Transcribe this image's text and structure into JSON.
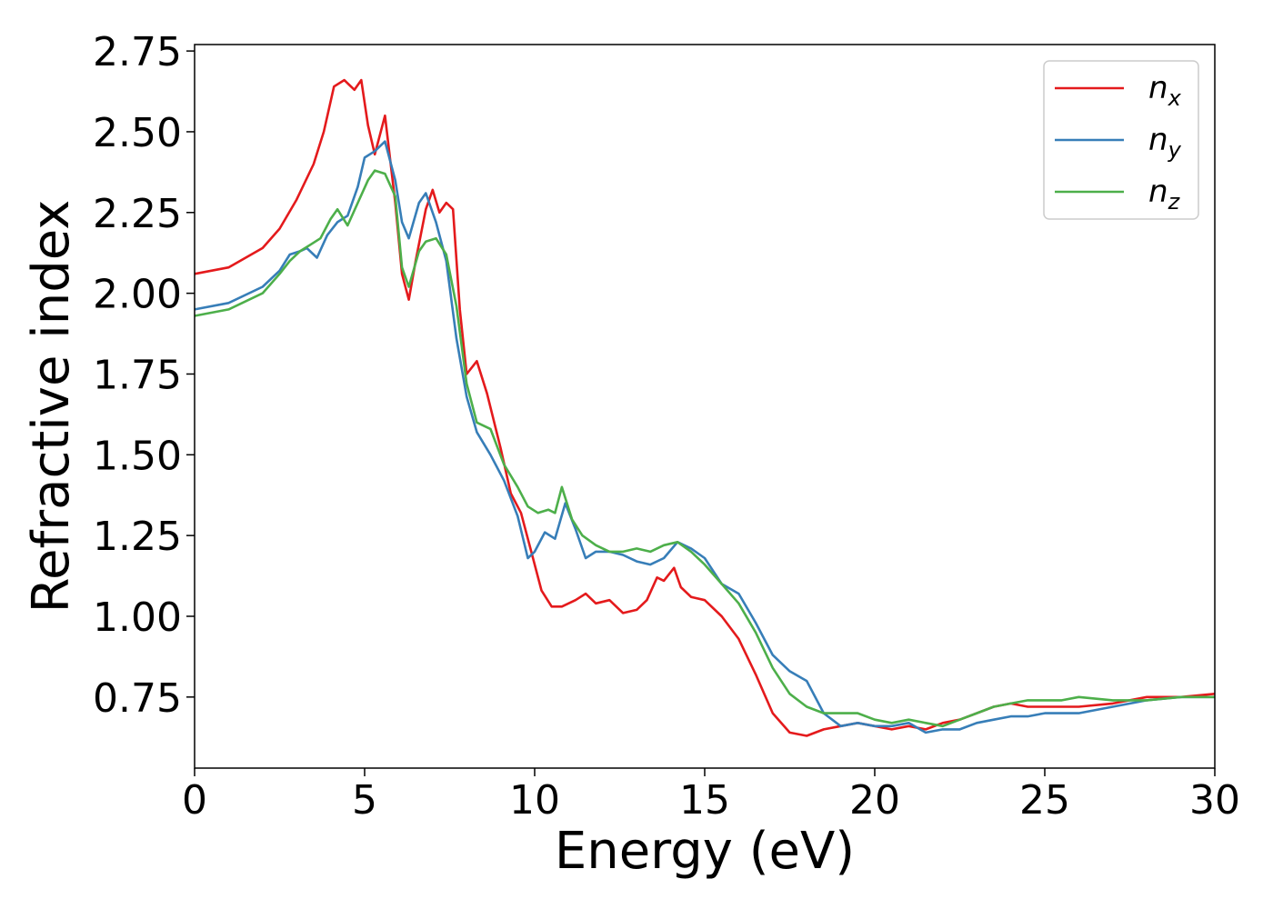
{
  "chart_data": {
    "type": "line",
    "title": "",
    "xlabel": "Energy (eV)",
    "ylabel": "Refractive index",
    "xlim": [
      0,
      30
    ],
    "ylim": [
      0.53,
      2.77
    ],
    "xticks": [
      0,
      5,
      10,
      15,
      20,
      25,
      30
    ],
    "yticks": [
      0.75,
      1.0,
      1.25,
      1.5,
      1.75,
      2.0,
      2.25,
      2.5,
      2.75
    ],
    "xtick_labels": [
      "0",
      "5",
      "10",
      "15",
      "20",
      "25",
      "30"
    ],
    "ytick_labels": [
      "0.75",
      "1.00",
      "1.25",
      "1.50",
      "1.75",
      "2.00",
      "2.25",
      "2.50",
      "2.75"
    ],
    "legend_position": "top-right",
    "grid": false,
    "series": [
      {
        "name": "n_x",
        "label_base": "n",
        "label_sub": "x",
        "color": "#e41a1c",
        "x": [
          0,
          1,
          2,
          2.5,
          3,
          3.5,
          3.8,
          4.1,
          4.4,
          4.7,
          4.9,
          5.1,
          5.3,
          5.6,
          5.9,
          6.1,
          6.3,
          6.5,
          6.8,
          7.0,
          7.2,
          7.4,
          7.6,
          7.8,
          8.0,
          8.3,
          8.6,
          9.0,
          9.3,
          9.6,
          9.9,
          10.2,
          10.5,
          10.8,
          11.2,
          11.5,
          11.8,
          12.2,
          12.6,
          13.0,
          13.3,
          13.6,
          13.8,
          14.1,
          14.3,
          14.6,
          15.0,
          15.5,
          16.0,
          16.5,
          17.0,
          17.5,
          18.0,
          18.5,
          19.0,
          19.5,
          20.0,
          20.5,
          21.0,
          21.5,
          22.0,
          22.5,
          23.0,
          23.5,
          24.0,
          24.5,
          25.0,
          26.0,
          27.0,
          28.0,
          29.0,
          30.0
        ],
        "y": [
          2.06,
          2.08,
          2.14,
          2.2,
          2.29,
          2.4,
          2.5,
          2.64,
          2.66,
          2.63,
          2.66,
          2.52,
          2.43,
          2.55,
          2.28,
          2.06,
          1.98,
          2.1,
          2.26,
          2.32,
          2.25,
          2.28,
          2.26,
          1.95,
          1.75,
          1.79,
          1.69,
          1.52,
          1.38,
          1.32,
          1.2,
          1.08,
          1.03,
          1.03,
          1.05,
          1.07,
          1.04,
          1.05,
          1.01,
          1.02,
          1.05,
          1.12,
          1.11,
          1.15,
          1.09,
          1.06,
          1.05,
          1.0,
          0.93,
          0.82,
          0.7,
          0.64,
          0.63,
          0.65,
          0.66,
          0.67,
          0.66,
          0.65,
          0.66,
          0.65,
          0.67,
          0.68,
          0.7,
          0.72,
          0.73,
          0.72,
          0.72,
          0.72,
          0.73,
          0.75,
          0.75,
          0.76
        ]
      },
      {
        "name": "n_y",
        "label_base": "n",
        "label_sub": "y",
        "color": "#377eb8",
        "x": [
          0,
          1,
          2,
          2.5,
          2.8,
          3.1,
          3.3,
          3.6,
          3.9,
          4.2,
          4.5,
          4.8,
          5.0,
          5.3,
          5.6,
          5.9,
          6.1,
          6.3,
          6.6,
          6.8,
          7.1,
          7.4,
          7.7,
          8.0,
          8.3,
          8.7,
          9.1,
          9.5,
          9.8,
          10.0,
          10.3,
          10.6,
          10.9,
          11.2,
          11.5,
          11.8,
          12.2,
          12.6,
          13.0,
          13.4,
          13.8,
          14.2,
          14.6,
          15.0,
          15.5,
          16.0,
          16.5,
          17.0,
          17.5,
          18.0,
          18.5,
          19.0,
          19.5,
          20.0,
          20.5,
          21.0,
          21.5,
          22.0,
          22.5,
          23.0,
          23.5,
          24.0,
          24.5,
          25.0,
          26.0,
          27.0,
          28.0,
          29.0,
          30.0
        ],
        "y": [
          1.95,
          1.97,
          2.02,
          2.07,
          2.12,
          2.13,
          2.14,
          2.11,
          2.18,
          2.22,
          2.24,
          2.33,
          2.42,
          2.44,
          2.47,
          2.35,
          2.22,
          2.17,
          2.28,
          2.31,
          2.22,
          2.1,
          1.86,
          1.68,
          1.57,
          1.5,
          1.42,
          1.31,
          1.18,
          1.2,
          1.26,
          1.24,
          1.35,
          1.27,
          1.18,
          1.2,
          1.2,
          1.19,
          1.17,
          1.16,
          1.18,
          1.23,
          1.21,
          1.18,
          1.1,
          1.07,
          0.98,
          0.88,
          0.83,
          0.8,
          0.7,
          0.66,
          0.67,
          0.66,
          0.66,
          0.67,
          0.64,
          0.65,
          0.65,
          0.67,
          0.68,
          0.69,
          0.69,
          0.7,
          0.7,
          0.72,
          0.74,
          0.75,
          0.75
        ]
      },
      {
        "name": "n_z",
        "label_base": "n",
        "label_sub": "z",
        "color": "#4daf4a",
        "x": [
          0,
          1,
          2,
          2.5,
          2.8,
          3.1,
          3.4,
          3.7,
          4.0,
          4.2,
          4.5,
          4.8,
          5.1,
          5.3,
          5.6,
          5.9,
          6.1,
          6.3,
          6.6,
          6.8,
          7.1,
          7.4,
          7.7,
          8.0,
          8.3,
          8.7,
          9.1,
          9.5,
          9.8,
          10.1,
          10.4,
          10.6,
          10.8,
          11.1,
          11.4,
          11.8,
          12.2,
          12.6,
          13.0,
          13.4,
          13.8,
          14.2,
          14.6,
          15.0,
          15.5,
          16.0,
          16.5,
          17.0,
          17.5,
          18.0,
          18.5,
          19.0,
          19.5,
          20.0,
          20.5,
          21.0,
          21.5,
          22.0,
          22.5,
          23.0,
          23.5,
          24.0,
          24.5,
          25.0,
          25.5,
          26.0,
          27.0,
          28.0,
          29.0,
          30.0
        ],
        "y": [
          1.93,
          1.95,
          2.0,
          2.06,
          2.1,
          2.13,
          2.15,
          2.17,
          2.23,
          2.26,
          2.21,
          2.28,
          2.35,
          2.38,
          2.37,
          2.3,
          2.08,
          2.02,
          2.13,
          2.16,
          2.17,
          2.12,
          1.96,
          1.72,
          1.6,
          1.58,
          1.47,
          1.4,
          1.34,
          1.32,
          1.33,
          1.32,
          1.4,
          1.3,
          1.25,
          1.22,
          1.2,
          1.2,
          1.21,
          1.2,
          1.22,
          1.23,
          1.2,
          1.16,
          1.1,
          1.04,
          0.95,
          0.84,
          0.76,
          0.72,
          0.7,
          0.7,
          0.7,
          0.68,
          0.67,
          0.68,
          0.67,
          0.66,
          0.68,
          0.7,
          0.72,
          0.73,
          0.74,
          0.74,
          0.74,
          0.75,
          0.74,
          0.74,
          0.75,
          0.75
        ]
      }
    ]
  }
}
